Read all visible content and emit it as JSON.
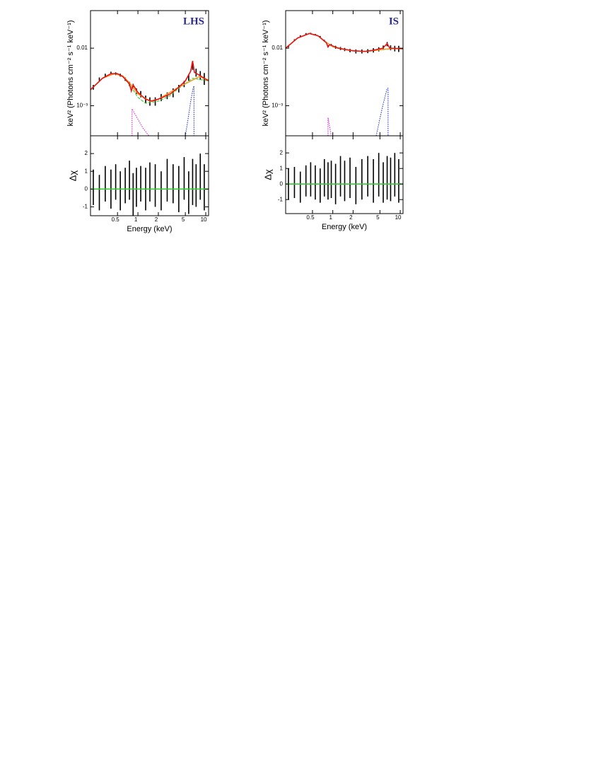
{
  "chart_data": [
    {
      "type": "line",
      "annotation": "LHS",
      "ylabel": "keV² (Photons cm⁻² s⁻¹ keV⁻¹)",
      "log_x": true,
      "log_y": true,
      "xlim": [
        0.2,
        11
      ],
      "ylim": [
        0.0003,
        0.045
      ],
      "xticks": [
        0.5,
        1,
        2,
        5,
        10
      ],
      "yticks": [
        {
          "value": 0.001,
          "label": "10⁻³"
        },
        0.01
      ],
      "series": [
        {
          "color": "#000000",
          "style": "errorbar",
          "x": [
            0.22,
            0.27,
            0.33,
            0.4,
            0.47,
            0.55,
            0.65,
            0.75,
            0.85,
            0.95,
            1.1,
            1.3,
            1.5,
            1.8,
            2.2,
            2.7,
            3.3,
            4,
            4.8,
            5.6,
            6.4,
            7.2,
            8.3,
            9.5
          ],
          "values": [
            0.0021,
            0.0029,
            0.0034,
            0.0037,
            0.0036,
            0.0034,
            0.0029,
            0.0024,
            0.0022,
            0.0018,
            0.0016,
            0.0013,
            0.0012,
            0.0012,
            0.0014,
            0.0015,
            0.0017,
            0.002,
            0.0024,
            0.0031,
            0.0048,
            0.0038,
            0.0034,
            0.003
          ],
          "errors": [
            0.0002,
            0.0002,
            0.0002,
            0.0002,
            0.0002,
            0.0002,
            0.0002,
            0.0002,
            0.0002,
            0.0002,
            0.0002,
            0.0002,
            0.0002,
            0.0002,
            0.0002,
            0.0002,
            0.0003,
            0.0003,
            0.0003,
            0.0004,
            0.0006,
            0.0006,
            0.0006,
            0.0007
          ]
        },
        {
          "color": "#33cc33",
          "style": "dashed",
          "x": [
            0.2,
            0.3,
            0.45,
            0.6,
            0.8,
            1,
            1.3,
            2,
            3,
            4,
            6.4,
            11
          ],
          "values": [
            0.0019,
            0.003,
            0.0036,
            0.0032,
            0.0021,
            0.0014,
            0.0011,
            0.0012,
            0.0015,
            0.002,
            0.003,
            0.0027
          ]
        },
        {
          "color": "#f0a030",
          "style": "solid",
          "x": [
            0.2,
            0.3,
            0.45,
            0.6,
            0.75,
            1,
            1.5,
            2,
            4,
            8,
            11
          ],
          "values": [
            0.0019,
            0.003,
            0.0036,
            0.0033,
            0.0025,
            0.0016,
            0.0012,
            0.0013,
            0.0021,
            0.0032,
            0.0028
          ]
        },
        {
          "color": "#ee1111",
          "style": "solid",
          "x": [
            0.2,
            0.3,
            0.4,
            0.5,
            0.6,
            0.75,
            0.8,
            0.85,
            1,
            1.3,
            1.6,
            2,
            3,
            4,
            5,
            6,
            6.4,
            6.8,
            8,
            11
          ],
          "values": [
            0.0019,
            0.003,
            0.0036,
            0.0036,
            0.0032,
            0.0024,
            0.0018,
            0.0023,
            0.0017,
            0.0013,
            0.0012,
            0.0013,
            0.0016,
            0.0021,
            0.0027,
            0.004,
            0.006,
            0.0038,
            0.0034,
            0.0027
          ]
        },
        {
          "color": "#dd22dd",
          "style": "dotted",
          "x": [
            0.82,
            0.82,
            1,
            1.2,
            1.45
          ],
          "values": [
            0.0003,
            0.00088,
            0.00058,
            0.0004,
            0.0003
          ]
        },
        {
          "color": "#2233cc",
          "style": "dotted",
          "x": [
            5,
            5.5,
            6,
            6.5,
            6.7,
            6.7
          ],
          "values": [
            0.0003,
            0.0006,
            0.0012,
            0.002,
            0.0022,
            0.0003
          ]
        }
      ]
    },
    {
      "type": "errorbar",
      "xlabel": "Energy (keV)",
      "ylabel": "Δχ",
      "log_x": true,
      "log_y": false,
      "xlim": [
        0.2,
        11
      ],
      "ylim": [
        -1.5,
        3
      ],
      "xticks": [
        0.5,
        1,
        2,
        5,
        10
      ],
      "yticks": [
        -1,
        0,
        1,
        2
      ],
      "series": [
        {
          "color": "#000000",
          "style": "errorbar",
          "x": [
            0.22,
            0.27,
            0.33,
            0.4,
            0.47,
            0.55,
            0.65,
            0.75,
            0.85,
            0.95,
            1.1,
            1.3,
            1.5,
            1.8,
            2.2,
            2.7,
            3.3,
            4,
            4.8,
            5.6,
            6.4,
            7.2,
            8.3,
            9.5
          ],
          "values": [
            0.1,
            -0.2,
            0.3,
            0.0,
            0.4,
            -0.1,
            0.2,
            0.5,
            -0.3,
            0.1,
            0.3,
            0.0,
            0.4,
            0.2,
            -0.1,
            0.5,
            0.3,
            0.0,
            0.6,
            -0.2,
            0.4,
            0.2,
            0.7,
            0.1
          ],
          "errors": [
            1,
            1,
            1,
            1.1,
            1,
            1.1,
            1,
            1.1,
            1.2,
            1.1,
            1,
            1.2,
            1.1,
            1.2,
            1.1,
            1.2,
            1.1,
            1.3,
            1.2,
            1.2,
            1.3,
            1.2,
            1.3,
            1.3
          ]
        },
        {
          "color": "#33cc33",
          "style": "solid",
          "x": [
            0.2,
            11
          ],
          "values": [
            0,
            0
          ]
        }
      ]
    },
    {
      "type": "line",
      "annotation": "IS",
      "ylabel": "keV² (Photons cm⁻² s⁻¹ keV⁻¹)",
      "log_x": true,
      "log_y": true,
      "xlim": [
        0.2,
        11
      ],
      "ylim": [
        0.0003,
        0.045
      ],
      "xticks": [
        0.5,
        1,
        2,
        5,
        10
      ],
      "yticks": [
        {
          "value": 0.001,
          "label": "10⁻³"
        },
        0.01
      ],
      "series": [
        {
          "color": "#000000",
          "style": "errorbar",
          "x": [
            0.22,
            0.27,
            0.33,
            0.4,
            0.47,
            0.55,
            0.65,
            0.75,
            0.85,
            0.95,
            1.1,
            1.3,
            1.5,
            1.8,
            2.2,
            2.7,
            3.3,
            4,
            4.8,
            5.6,
            6.4,
            7.2,
            8.3,
            9.5
          ],
          "values": [
            0.0108,
            0.0138,
            0.0163,
            0.0178,
            0.018,
            0.0172,
            0.0158,
            0.0135,
            0.0108,
            0.0113,
            0.0104,
            0.0099,
            0.0095,
            0.0091,
            0.0088,
            0.0088,
            0.0089,
            0.0092,
            0.0096,
            0.0102,
            0.0118,
            0.0102,
            0.0099,
            0.0098
          ],
          "errors": [
            0.0005,
            0.0005,
            0.0005,
            0.0005,
            0.0005,
            0.0005,
            0.0005,
            0.0005,
            0.0005,
            0.0005,
            0.0006,
            0.0006,
            0.0006,
            0.0006,
            0.0007,
            0.0007,
            0.0007,
            0.0008,
            0.0008,
            0.0009,
            0.001,
            0.001,
            0.0011,
            0.0012
          ]
        },
        {
          "color": "#33cc33",
          "style": "dashed",
          "x": [
            0.2,
            0.3,
            0.45,
            0.6,
            0.8,
            1,
            1.5,
            2,
            3,
            5,
            8,
            11
          ],
          "values": [
            0.01,
            0.015,
            0.018,
            0.0165,
            0.0125,
            0.0105,
            0.0094,
            0.009,
            0.0087,
            0.0093,
            0.0098,
            0.0097
          ]
        },
        {
          "color": "#f0a030",
          "style": "solid",
          "x": [
            0.2,
            0.3,
            0.45,
            0.6,
            0.8,
            1,
            1.5,
            2,
            3,
            5,
            8,
            11
          ],
          "values": [
            0.01,
            0.015,
            0.018,
            0.0165,
            0.0126,
            0.0107,
            0.0095,
            0.009,
            0.0088,
            0.0094,
            0.0099,
            0.0098
          ]
        },
        {
          "color": "#ee1111",
          "style": "solid",
          "x": [
            0.2,
            0.3,
            0.45,
            0.6,
            0.8,
            0.85,
            0.9,
            1.2,
            2,
            3,
            4,
            5.5,
            6.4,
            7,
            11
          ],
          "values": [
            0.01,
            0.015,
            0.018,
            0.0165,
            0.0125,
            0.0105,
            0.0115,
            0.01,
            0.009,
            0.0088,
            0.0092,
            0.01,
            0.012,
            0.01,
            0.0098
          ]
        },
        {
          "color": "#dd22dd",
          "style": "dotted",
          "x": [
            0.85,
            0.85,
            0.95
          ],
          "values": [
            0.0003,
            0.00062,
            0.0003
          ]
        },
        {
          "color": "#2233cc",
          "style": "dotted",
          "x": [
            4.4,
            5.5,
            6.4,
            6.6,
            6.6
          ],
          "values": [
            0.0003,
            0.001,
            0.002,
            0.002,
            0.0003
          ]
        }
      ]
    },
    {
      "type": "errorbar",
      "xlabel": "Energy (keV)",
      "ylabel": "Δχ",
      "log_x": true,
      "log_y": false,
      "xlim": [
        0.2,
        11
      ],
      "ylim": [
        -1.9,
        3.1
      ],
      "xticks": [
        0.5,
        1,
        2,
        5,
        10
      ],
      "yticks": [
        -1,
        0,
        1,
        2
      ],
      "series": [
        {
          "color": "#000000",
          "style": "errorbar",
          "x": [
            0.22,
            0.27,
            0.33,
            0.4,
            0.47,
            0.55,
            0.65,
            0.75,
            0.85,
            0.95,
            1.1,
            1.3,
            1.5,
            1.8,
            2.2,
            2.7,
            3.3,
            4,
            4.8,
            5.6,
            6.4,
            7.2,
            8.3,
            9.5
          ],
          "values": [
            0.0,
            0.1,
            -0.2,
            0.2,
            0.3,
            0.1,
            -0.1,
            0.4,
            0.2,
            0.3,
            0.0,
            0.5,
            0.2,
            0.4,
            -0.1,
            0.3,
            0.5,
            0.2,
            0.6,
            0.1,
            0.4,
            0.3,
            0.6,
            0.2
          ],
          "errors": [
            1,
            1,
            1,
            1,
            1.1,
            1.1,
            1.1,
            1.2,
            1.2,
            1.2,
            1.3,
            1.3,
            1.3,
            1.3,
            1.2,
            1.3,
            1.3,
            1.4,
            1.4,
            1.3,
            1.4,
            1.4,
            1.4,
            1.4
          ]
        },
        {
          "color": "#33cc33",
          "style": "solid",
          "x": [
            0.2,
            11
          ],
          "values": [
            0,
            0
          ]
        }
      ]
    }
  ]
}
